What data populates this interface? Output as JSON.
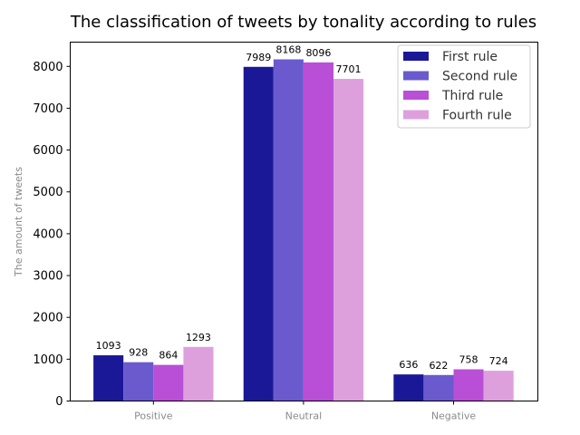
{
  "chart_data": {
    "type": "bar",
    "title": "The classification of tweets by tonality according to rules",
    "xlabel": "",
    "ylabel": "The amount of tweets",
    "categories": [
      "Positive",
      "Neutral",
      "Negative"
    ],
    "series": [
      {
        "name": "First rule",
        "color": "#1a1896",
        "values": [
          1093,
          7989,
          636
        ]
      },
      {
        "name": "Second rule",
        "color": "#6a5acd",
        "values": [
          928,
          8168,
          622
        ]
      },
      {
        "name": "Third rule",
        "color": "#b94fd6",
        "values": [
          864,
          8096,
          758
        ]
      },
      {
        "name": "Fourth rule",
        "color": "#dda0dd",
        "values": [
          1293,
          7701,
          724
        ]
      }
    ],
    "ylim": [
      0,
      8580
    ],
    "yticks": [
      0,
      1000,
      2000,
      3000,
      4000,
      5000,
      6000,
      7000,
      8000
    ],
    "grid": false,
    "legend_position": "top-right",
    "data_labels": true
  }
}
